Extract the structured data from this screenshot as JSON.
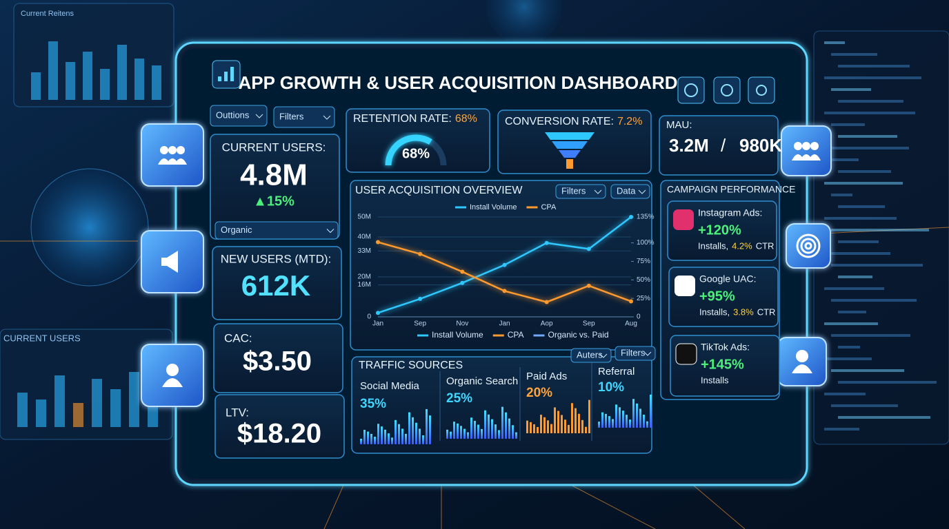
{
  "background": {
    "top_panel_title": "Current Reitens",
    "left_panel_title": "CURRENT USERS"
  },
  "header": {
    "title": "APP GROWTH & USER ACQUISITION DASHBOARD"
  },
  "toolbar": {
    "options": "Outtions",
    "filters": "Filters"
  },
  "current_users": {
    "label": "CURRENT USERS:",
    "value": "4.8M",
    "change": "▲15%",
    "segment": "Organic"
  },
  "new_users": {
    "label": "NEW USERS (MTD):",
    "value": "612K"
  },
  "cac": {
    "label": "CAC:",
    "value": "$3.50"
  },
  "ltv": {
    "label": "LTV:",
    "value": "$18.20"
  },
  "retention": {
    "label": "RETENTION RATE:",
    "value": 68,
    "value_label": "68%"
  },
  "conversion": {
    "label": "CONVERSION RATE:",
    "value": "7.2%"
  },
  "mau": {
    "label": "MAU:",
    "value": "3.2M",
    "separator": "/",
    "secondary": "980K"
  },
  "chart_data": {
    "type": "line",
    "title": "USER ACQUISITION OVERVIEW",
    "controls": [
      "Filters",
      "Data"
    ],
    "categories": [
      "Jan",
      "Sep",
      "Nov",
      "Jan",
      "Aop",
      "Sep",
      "Aug"
    ],
    "series": [
      {
        "name": "Install Volume",
        "color": "#2ec8ff",
        "values": [
          2,
          9,
          17,
          26,
          37,
          34,
          50
        ]
      },
      {
        "name": "CPA",
        "color": "#ff9a2e",
        "axis": "y2",
        "values": [
          101,
          85,
          61,
          35,
          20,
          42,
          21
        ]
      }
    ],
    "bottom_legend": [
      "Install Volume",
      "CPA",
      "Organic vs. Paid"
    ],
    "ylim": [
      0,
      50
    ],
    "yticks": [
      {
        "value": 50,
        "label": "50M"
      },
      {
        "value": 40,
        "label": "40M"
      },
      {
        "value": 33,
        "label": "33M"
      },
      {
        "value": 20,
        "label": "20M"
      },
      {
        "value": 16,
        "label": "16M"
      },
      0
    ],
    "y2lim": [
      0,
      135
    ],
    "y2ticks": [
      {
        "value": 135,
        "label": "135%"
      },
      {
        "value": 100,
        "label": "100%"
      },
      {
        "value": 75,
        "label": "75%"
      },
      {
        "value": 50,
        "label": "50%"
      },
      {
        "value": 25,
        "label": "25%"
      },
      0
    ],
    "grid": true
  },
  "traffic_sources": {
    "title": "TRAFFIC SOURCES",
    "controls": [
      "Auters",
      "Filters"
    ],
    "items": [
      {
        "name": "Social Media",
        "share": "35%",
        "color": "#3fd6ff"
      },
      {
        "name": "Organic Search",
        "share": "25%",
        "color": "#3fd6ff"
      },
      {
        "name": "Paid Ads",
        "share": "20%",
        "color": "#ffa43a"
      },
      {
        "name": "Referral",
        "share": "10%",
        "color": "#3fd6ff"
      }
    ]
  },
  "campaigns": {
    "title": "CAMPAIGN PERFORMANCE",
    "items": [
      {
        "name": "Instagram Ads:",
        "lift": "+120%",
        "metric": "Installs,",
        "ctr": "4.2%",
        "ctr_unit": "CTR"
      },
      {
        "name": "Google UAC:",
        "lift": "+95%",
        "metric": "Installs,",
        "ctr": "3.8%",
        "ctr_unit": "CTR"
      },
      {
        "name": "TikTok Ads:",
        "lift": "+145%",
        "metric": "Installs"
      }
    ]
  }
}
